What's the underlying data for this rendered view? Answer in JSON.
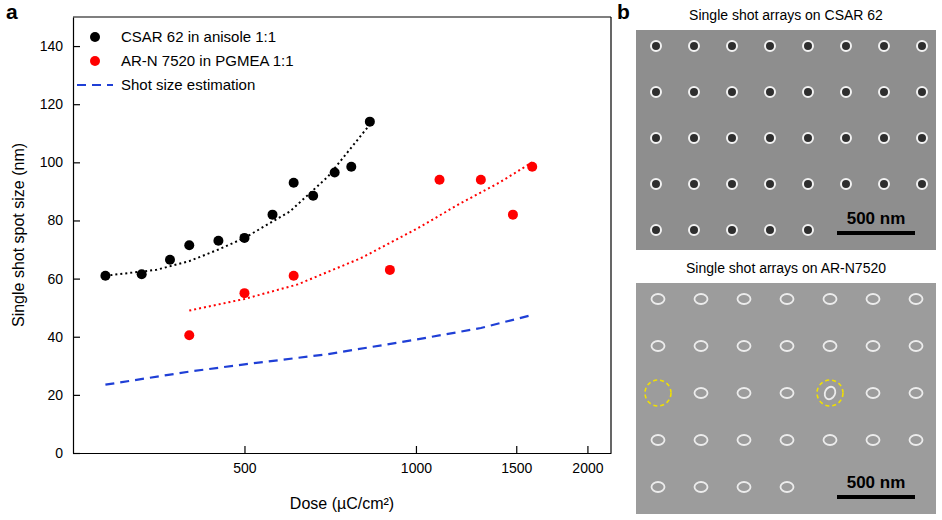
{
  "chart_data": {
    "type": "scatter",
    "label": "a",
    "x_label": "Dose (µC/cm²)",
    "y_label": "Single shot spot size (nm)",
    "log": "x",
    "grid": false,
    "legend": "upper left",
    "xlim": [
      250,
      2200
    ],
    "xticks": [
      500,
      1000,
      1500,
      2000
    ],
    "ylim": [
      0,
      150
    ],
    "yticks": [
      0,
      20,
      40,
      60,
      80,
      100,
      120,
      140
    ],
    "series": [
      {
        "name": "CSAR 62 in anisole 1:1",
        "type": "scatter",
        "color": "#000000",
        "marker": "circle",
        "x": [
          285,
          330,
          370,
          400,
          450,
          500,
          560,
          610,
          660,
          720,
          770,
          830
        ],
        "values": [
          61,
          61.5,
          66.5,
          71.5,
          73,
          74,
          82,
          93,
          88.5,
          96.5,
          98.5,
          114
        ]
      },
      {
        "name": "AR-N 7520 in PGMEA 1:1",
        "type": "scatter",
        "color": "#ff0000",
        "marker": "circle",
        "x": [
          400,
          500,
          610,
          900,
          1100,
          1300,
          1480,
          1600
        ],
        "values": [
          40.5,
          55,
          61,
          63,
          94,
          94,
          82,
          98.5
        ]
      },
      {
        "name": "Shot size estimation",
        "type": "line",
        "color": "#1f3fd6",
        "line_style": "dashed",
        "x": [
          285,
          400,
          500,
          700,
          1000,
          1300,
          1600
        ],
        "values": [
          23.5,
          28,
          30.5,
          34,
          39,
          43,
          47.5
        ]
      }
    ],
    "fits": [
      {
        "type": "line",
        "color": "#000000",
        "line_style": "dotted",
        "x": [
          285,
          350,
          400,
          450,
          500,
          600,
          700,
          830
        ],
        "values": [
          61,
          63,
          66,
          70,
          74,
          83,
          95,
          113
        ]
      },
      {
        "type": "line",
        "color": "#ff0000",
        "line_style": "dotted",
        "x": [
          400,
          500,
          620,
          800,
          1000,
          1200,
          1400,
          1600
        ],
        "values": [
          49,
          53,
          58,
          67,
          77,
          86,
          93,
          100
        ]
      }
    ]
  },
  "images": {
    "label": "b",
    "panels": [
      {
        "title": "Single shot arrays on CSAR 62",
        "scale_bar": "500 nm"
      },
      {
        "title": "Single shot arrays on AR-N7520",
        "scale_bar": "500 nm"
      }
    ]
  }
}
